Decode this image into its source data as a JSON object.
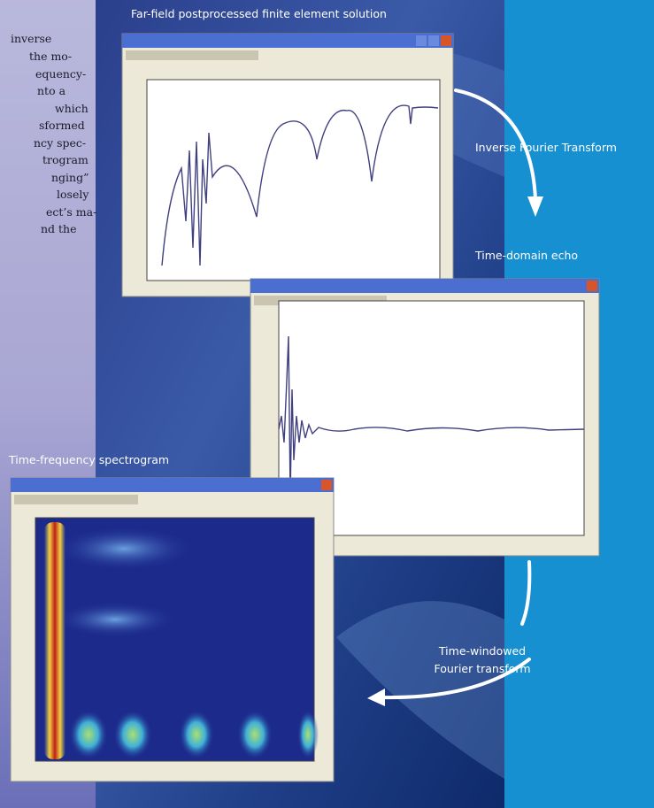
{
  "body_text": {
    "lines": [
      "inverse",
      "the mo-",
      "equency-",
      "nto a",
      "which",
      "sformed",
      "ncy spec-",
      "trogram",
      "nging”",
      "losely",
      "ect’s ma-",
      "nd the"
    ]
  },
  "captions": {
    "far_field": "Far-field postprocessed finite element solution",
    "inverse_fourier": "Inverse Fourier Transform",
    "time_domain": "Time-domain echo",
    "spectrogram": "Time-frequency spectrogram",
    "time_windowed": [
      "Time-windowed",
      "Fourier transform"
    ]
  }
}
